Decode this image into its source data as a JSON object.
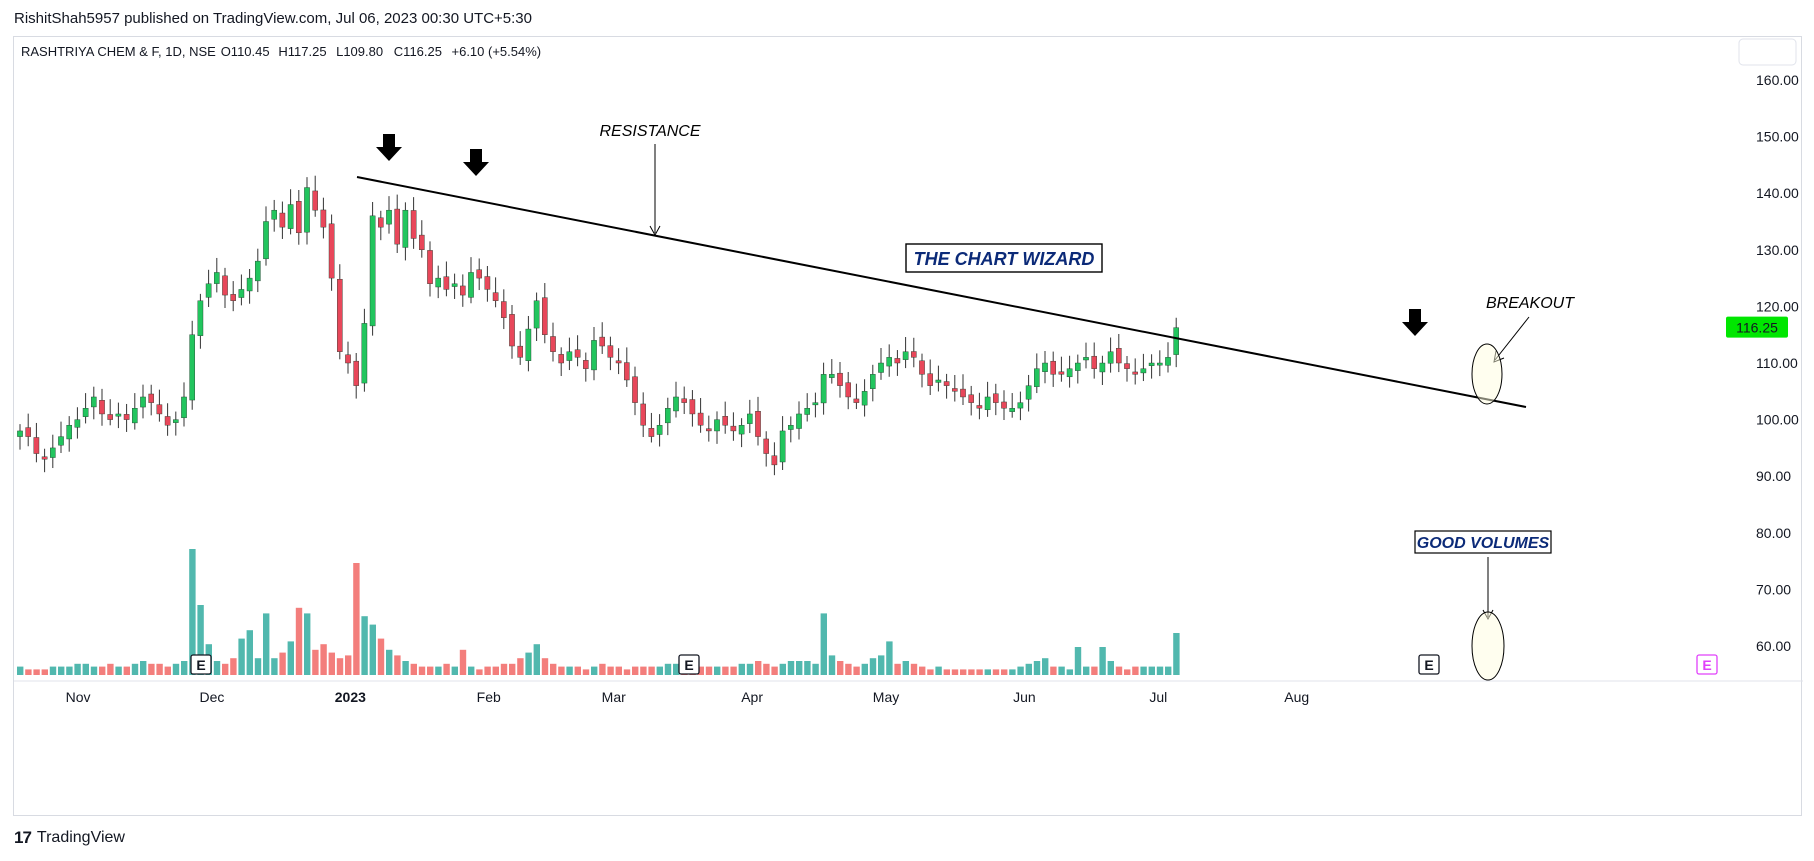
{
  "header": {
    "published": "RishitShah5957 published on TradingView.com, Jul 06, 2023 00:30 UTC+5:30"
  },
  "legend": {
    "symbol": "RASHTRIYA CHEM & F, 1D, NSE",
    "open": "O110.45",
    "high": "H117.25",
    "low": "L109.80",
    "close": "C116.25",
    "change": "+6.10 (+5.54%)"
  },
  "footer": {
    "brand": "TradingView",
    "logo": "17"
  },
  "colors": {
    "up": "#26a69a",
    "down": "#ef5350",
    "candle_up": "#22c55e",
    "candle_down": "#e8475a",
    "price_tag": "#00e600"
  },
  "chart_data": {
    "type": "candlestick",
    "y_axis": {
      "ticks": [
        "160.00",
        "150.00",
        "140.00",
        "130.00",
        "120.00",
        "110.00",
        "100.00",
        "90.00",
        "80.00",
        "70.00",
        "60.00"
      ],
      "range": [
        54,
        163
      ]
    },
    "x_axis": {
      "ticks": [
        {
          "label": "Nov",
          "date": "2022-11-01"
        },
        {
          "label": "Dec",
          "date": "2022-12-01"
        },
        {
          "label": "2023",
          "date": "2023-01-01"
        },
        {
          "label": "Feb",
          "date": "2023-02-01"
        },
        {
          "label": "Mar",
          "date": "2023-03-01"
        },
        {
          "label": "Apr",
          "date": "2023-04-01"
        },
        {
          "label": "May",
          "date": "2023-05-01"
        },
        {
          "label": "Jun",
          "date": "2023-06-01"
        },
        {
          "label": "Jul",
          "date": "2023-07-01"
        },
        {
          "label": "Aug",
          "date": "2023-08-01"
        }
      ]
    },
    "last_price": "116.25",
    "close_series": [
      98,
      97,
      94,
      93,
      95,
      97,
      99,
      100,
      102,
      104,
      101,
      100,
      101,
      100,
      102,
      104,
      103,
      101,
      99,
      100,
      104,
      115,
      121,
      124,
      126,
      122,
      121,
      123,
      125,
      128,
      135,
      137,
      134,
      138,
      133,
      141,
      137,
      134,
      125,
      112,
      110,
      106,
      117,
      136,
      134,
      137,
      131,
      137,
      132,
      130,
      124,
      125,
      123,
      124,
      122,
      126,
      125,
      123,
      121,
      118,
      113,
      111,
      116,
      121,
      115,
      112,
      110,
      112,
      111,
      109,
      114,
      113,
      111,
      110,
      107,
      103,
      99,
      97,
      99,
      102,
      104,
      103,
      101,
      99,
      98,
      100,
      99,
      98,
      99,
      101,
      97,
      94,
      92,
      98,
      99,
      101,
      102,
      103,
      108,
      108,
      106,
      104,
      103,
      105,
      108,
      110,
      111,
      110,
      112,
      111,
      108,
      106,
      107,
      106,
      105,
      104,
      103,
      102,
      104,
      103,
      102,
      102,
      103,
      106,
      109,
      110,
      108,
      108,
      109,
      110,
      111,
      109,
      110,
      112,
      110,
      109,
      108,
      109,
      110,
      110,
      111,
      116.25
    ],
    "volume_series": [
      3,
      2,
      2,
      2,
      3,
      3,
      3,
      4,
      4,
      3,
      3,
      4,
      3,
      3,
      4,
      5,
      4,
      4,
      3,
      4,
      5,
      45,
      25,
      11,
      5,
      4,
      6,
      13,
      16,
      6,
      22,
      6,
      8,
      12,
      24,
      22,
      9,
      11,
      8,
      6,
      7,
      40,
      21,
      18,
      13,
      9,
      7,
      5,
      4,
      3,
      3,
      3,
      4,
      3,
      9,
      3,
      2,
      3,
      3,
      4,
      4,
      6,
      8,
      11,
      6,
      4,
      3,
      3,
      3,
      2,
      3,
      4,
      3,
      3,
      2,
      3,
      3,
      3,
      3,
      4,
      4,
      3,
      3,
      3,
      3,
      3,
      3,
      3,
      4,
      4,
      5,
      4,
      3,
      4,
      5,
      5,
      5,
      4,
      22,
      7,
      5,
      4,
      3,
      4,
      6,
      7,
      12,
      4,
      5,
      4,
      3,
      2,
      3,
      2,
      2,
      2,
      2,
      2,
      2,
      2,
      2,
      2,
      3,
      4,
      5,
      6,
      3,
      3,
      2,
      10,
      3,
      3,
      10,
      5,
      3,
      2,
      3,
      3,
      3,
      3,
      3,
      15
    ],
    "annotations": {
      "resistance": "RESISTANCE",
      "brand_box": "THE CHART WIZARD",
      "breakout": "BREAKOUT",
      "volumes": "GOOD VOLUMES",
      "earnings_marker": "E"
    }
  }
}
